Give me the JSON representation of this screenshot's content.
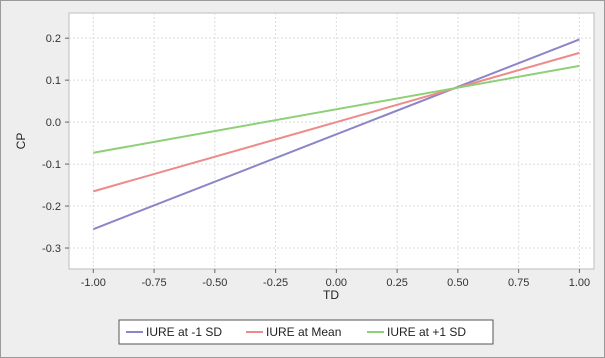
{
  "chart_data": {
    "type": "line",
    "xlabel": "TD",
    "ylabel": "CP",
    "xlim": [
      -1.1,
      1.06
    ],
    "ylim": [
      -0.35,
      0.26
    ],
    "grid": true,
    "legend_position": "bottom",
    "x_ticks": [
      "-1.00",
      "-0.75",
      "-0.50",
      "-0.25",
      "0.00",
      "0.25",
      "0.50",
      "0.75",
      "1.00"
    ],
    "y_ticks": [
      "0.2",
      "0.1",
      "0.0",
      "-0.1",
      "-0.2",
      "-0.3"
    ],
    "series": [
      {
        "name": "IURE at -1 SD",
        "color": "#8a86c8",
        "x": [
          -1.0,
          1.0
        ],
        "y": [
          -0.255,
          0.197
        ]
      },
      {
        "name": "IURE at Mean",
        "color": "#ef8a8a",
        "x": [
          -1.0,
          1.0
        ],
        "y": [
          -0.165,
          0.165
        ]
      },
      {
        "name": "IURE at +1 SD",
        "color": "#8fcf78",
        "x": [
          -1.0,
          1.0
        ],
        "y": [
          -0.073,
          0.134
        ]
      }
    ]
  }
}
